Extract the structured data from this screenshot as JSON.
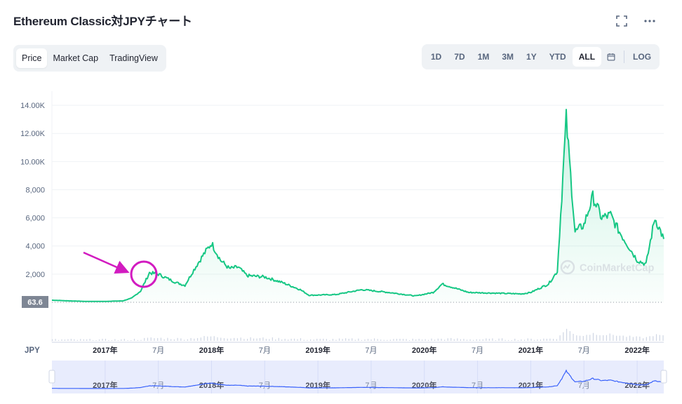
{
  "header": {
    "title": "Ethereum Classic対JPYチャート",
    "fullscreen_icon": "fullscreen-icon",
    "more_icon": "more-horizontal-icon"
  },
  "tabs": [
    {
      "label": "Price",
      "active": true
    },
    {
      "label": "Market Cap",
      "active": false
    },
    {
      "label": "TradingView",
      "active": false
    }
  ],
  "ranges": [
    {
      "label": "1D",
      "active": false
    },
    {
      "label": "7D",
      "active": false
    },
    {
      "label": "1M",
      "active": false
    },
    {
      "label": "3M",
      "active": false
    },
    {
      "label": "1Y",
      "active": false
    },
    {
      "label": "YTD",
      "active": false
    },
    {
      "label": "ALL",
      "active": true
    }
  ],
  "calendar_icon": "calendar-icon",
  "log_label": "LOG",
  "watermark": "CoinMarketCap",
  "currency_label": "JPY",
  "annotation": {
    "arrow_color": "#d21bc0",
    "circle_color": "#d21bc0"
  },
  "colors": {
    "line": "#16c784",
    "area_top": "#16c784",
    "navigator_line": "#3861fb",
    "baseline_tag_bg": "#7e8694"
  },
  "chart_data": {
    "type": "area",
    "title": "",
    "xlabel": "",
    "ylabel": "",
    "ylim": [
      0,
      15000
    ],
    "y_ticks": [
      "2,000",
      "4,000",
      "6,000",
      "8,000",
      "10.00K",
      "12.00K",
      "14.00K"
    ],
    "y_tick_values": [
      2000,
      4000,
      6000,
      8000,
      10000,
      12000,
      14000
    ],
    "x_ticks": [
      "2017年",
      "7月",
      "2018年",
      "7月",
      "2019年",
      "7月",
      "2020年",
      "7月",
      "2021年",
      "7月",
      "2022年"
    ],
    "x_tick_bold": [
      true,
      false,
      true,
      false,
      true,
      false,
      true,
      false,
      true,
      false,
      true
    ],
    "baseline_value": "63.6",
    "grid": true,
    "series": [
      {
        "x": [
          "2016-07",
          "2016-09",
          "2016-11",
          "2017-01",
          "2017-03",
          "2017-04",
          "2017-05",
          "2017-06",
          "2017-07",
          "2017-08",
          "2017-09",
          "2017-10",
          "2017-11",
          "2017-12",
          "2018-01",
          "2018-02",
          "2018-03",
          "2018-04",
          "2018-05",
          "2018-07",
          "2018-09",
          "2018-11",
          "2018-12",
          "2019-03",
          "2019-06",
          "2019-09",
          "2019-12",
          "2020-02",
          "2020-03",
          "2020-06",
          "2020-09",
          "2020-12",
          "2021-01",
          "2021-03",
          "2021-04",
          "2021-05",
          "2021-06",
          "2021-07",
          "2021-08",
          "2021-09",
          "2021-10",
          "2021-11",
          "2021-12",
          "2022-01",
          "2022-02",
          "2022-03",
          "2022-04"
        ],
        "values": [
          150,
          100,
          60,
          64,
          100,
          300,
          800,
          2100,
          2000,
          1700,
          1400,
          1200,
          2300,
          3300,
          4200,
          3000,
          2400,
          2500,
          1900,
          1800,
          1400,
          900,
          500,
          550,
          900,
          700,
          450,
          700,
          1300,
          700,
          650,
          600,
          700,
          1300,
          2200,
          13000,
          5000,
          5500,
          7500,
          6000,
          6200,
          5000,
          4000,
          3000,
          2700,
          6000,
          4500
        ]
      }
    ]
  }
}
